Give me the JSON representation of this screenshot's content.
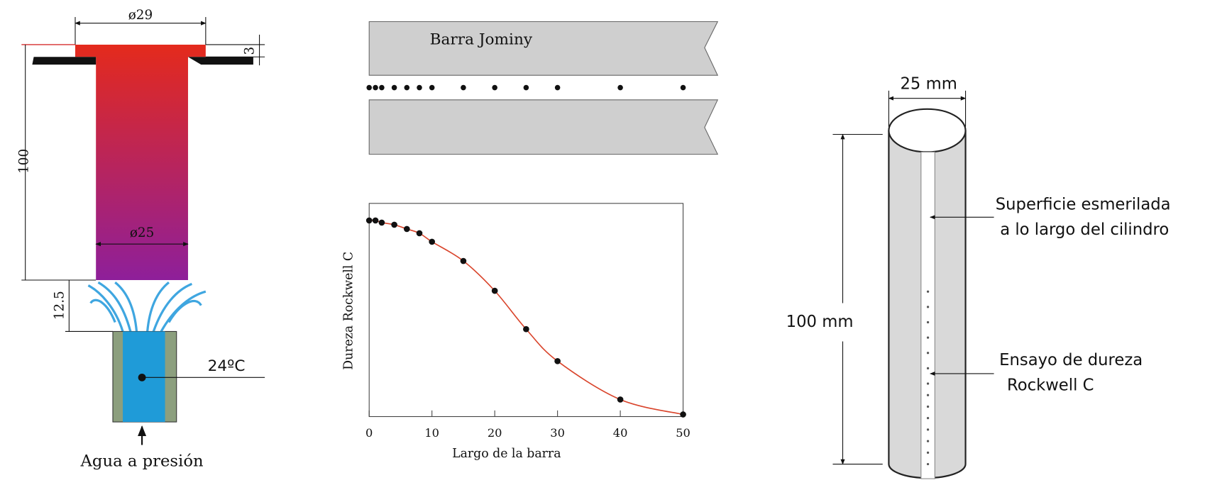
{
  "left_diagram": {
    "top_diameter": "ø29",
    "flange": "3",
    "length": "100",
    "bar_diameter": "ø25",
    "gap": "12.5",
    "temperature": "24ºC",
    "water": "Agua a presión"
  },
  "bar": {
    "label": "Barra Jominy"
  },
  "chart": {
    "type": "line",
    "x": [
      0,
      1,
      2,
      4,
      6,
      8,
      10,
      15,
      20,
      25,
      30,
      40,
      50
    ],
    "values": [
      92,
      92,
      91,
      90,
      88,
      86,
      82,
      73,
      59,
      41,
      26,
      8,
      1
    ],
    "xlim": [
      0,
      50
    ],
    "ylim": [
      0,
      100
    ],
    "xticks": [
      0,
      10,
      20,
      30,
      40,
      50
    ],
    "xlabel": "Largo de la barra",
    "ylabel": "Dureza Rockwell C",
    "color": "#d9442b"
  },
  "right_diagram": {
    "diameter": "25 mm",
    "length": "100 mm",
    "surface_1": "Superficie esmerilada",
    "surface_2": "a lo largo del cilindro",
    "test_1": "Ensayo de dureza",
    "test_2": "Rockwell C"
  }
}
